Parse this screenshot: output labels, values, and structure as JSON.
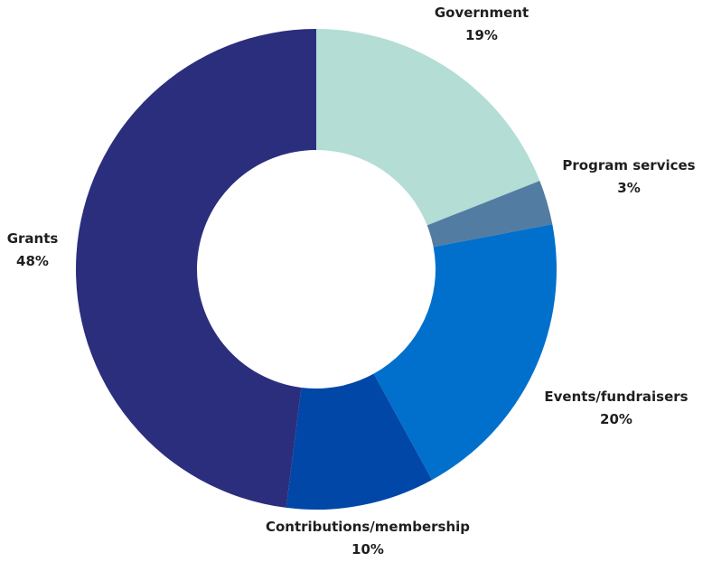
{
  "chart_data": {
    "type": "pie",
    "style": "donut",
    "categories": [
      "Government",
      "Program services",
      "Events/fundraisers",
      "Contributions/membership",
      "Grants"
    ],
    "values": [
      19,
      3,
      20,
      10,
      48
    ],
    "value_labels": [
      "19%",
      "3%",
      "20%",
      "10%",
      "48%"
    ],
    "colors": [
      "#b3ddd5",
      "#537ca3",
      "#0070cc",
      "#0047a8",
      "#2b2e7d"
    ],
    "start_angle_deg": 0,
    "direction": "clockwise",
    "legend": "none"
  }
}
